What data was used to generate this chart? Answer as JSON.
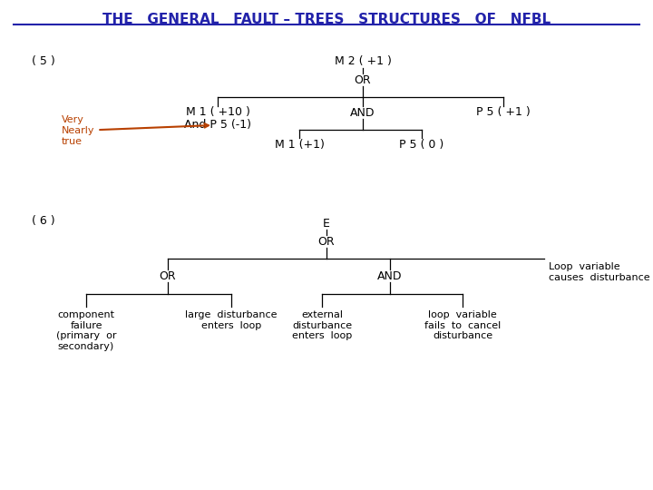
{
  "title": "THE   GENERAL   FAULT – TREES   STRUCTURES   OF   NFBL",
  "title_color": "#2222aa",
  "bg_color": "#ffffff",
  "font_family": "Courier New",
  "tree1_label": "( 5 )",
  "tree2_label": "( 6 )"
}
